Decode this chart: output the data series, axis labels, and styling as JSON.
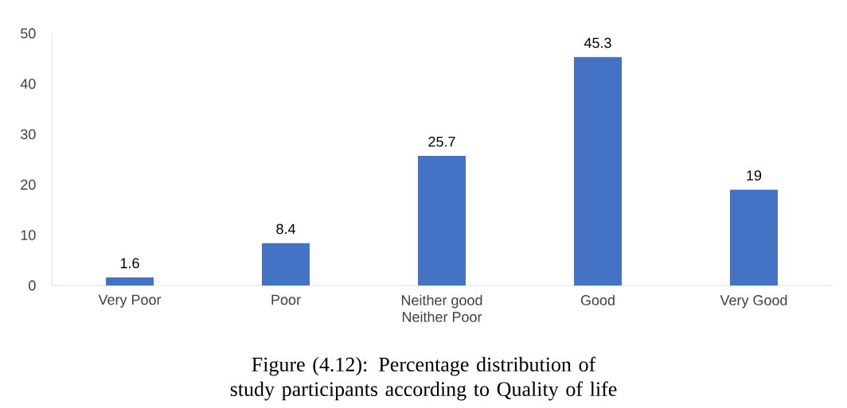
{
  "chart_data": {
    "type": "bar",
    "categories": [
      "Very Poor",
      "Poor",
      "Neither good Neither Poor",
      "Good",
      "Very Good"
    ],
    "values": [
      1.6,
      8.4,
      25.7,
      45.3,
      19
    ],
    "color": "#4472c4",
    "ylim": [
      0,
      50
    ],
    "yticks": [
      0,
      10,
      20,
      30,
      40,
      50
    ],
    "data_labels": true,
    "grid": false,
    "annotations": [
      "Figure (4.12): Percentage distribution of study participants according to Quality of life"
    ]
  }
}
